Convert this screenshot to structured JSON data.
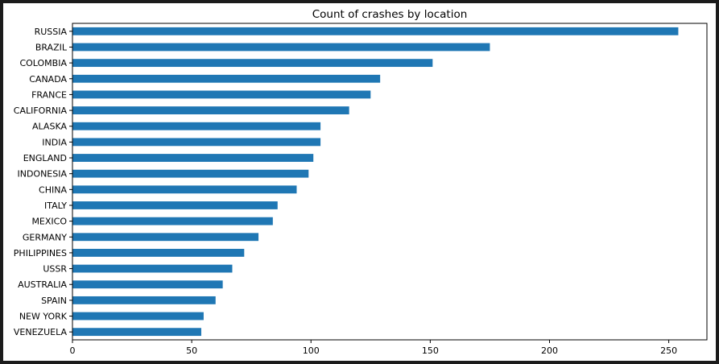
{
  "chart_data": {
    "type": "bar",
    "orientation": "horizontal",
    "title": "Count of crashes by location",
    "xlabel": "",
    "ylabel": "",
    "categories": [
      "RUSSIA",
      "BRAZIL",
      "COLOMBIA",
      "CANADA",
      "FRANCE",
      "CALIFORNIA",
      "ALASKA",
      "INDIA",
      "ENGLAND",
      "INDONESIA",
      "CHINA",
      "ITALY",
      "MEXICO",
      "GERMANY",
      "PHILIPPINES",
      "USSR",
      "AUSTRALIA",
      "SPAIN",
      "NEW YORK",
      "VENEZUELA"
    ],
    "values": [
      254,
      175,
      151,
      129,
      125,
      116,
      104,
      104,
      101,
      99,
      94,
      86,
      84,
      78,
      72,
      67,
      63,
      60,
      55,
      54
    ],
    "xlim": [
      0,
      266
    ],
    "xticks": [
      0,
      50,
      100,
      150,
      200,
      250
    ],
    "bar_color": "#1f77b4",
    "grid": false,
    "legend": "none"
  }
}
